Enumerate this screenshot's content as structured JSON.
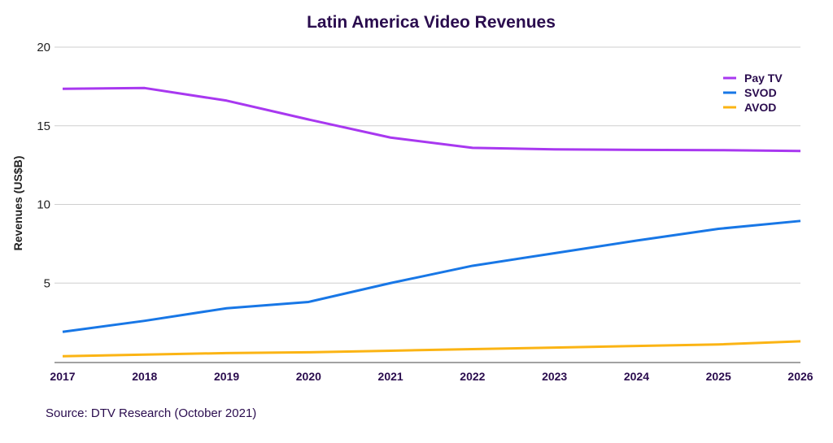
{
  "chart_data": {
    "type": "line",
    "title": "Latin America Video Revenues",
    "xlabel": "",
    "ylabel": "Revenues (US$B)",
    "ylim": [
      0,
      20
    ],
    "yticks": [
      5,
      10,
      15,
      20
    ],
    "grid": true,
    "legend": "top-right",
    "categories": [
      "2017",
      "2018",
      "2019",
      "2020",
      "2021",
      "2022",
      "2023",
      "2024",
      "2025",
      "2026"
    ],
    "series": [
      {
        "name": "Pay TV",
        "color": "#a838f0",
        "values": [
          17.35,
          17.4,
          16.6,
          15.4,
          14.25,
          13.6,
          13.5,
          13.47,
          13.45,
          13.4
        ]
      },
      {
        "name": "SVOD",
        "color": "#1877e6",
        "values": [
          1.9,
          2.6,
          3.4,
          3.8,
          5.0,
          6.1,
          6.9,
          7.7,
          8.45,
          8.95
        ]
      },
      {
        "name": "AVOD",
        "color": "#fbb414",
        "values": [
          0.35,
          0.45,
          0.55,
          0.6,
          0.7,
          0.8,
          0.9,
          1.0,
          1.1,
          1.3
        ]
      }
    ],
    "source": "Source: DTV Research (October 2021)"
  }
}
